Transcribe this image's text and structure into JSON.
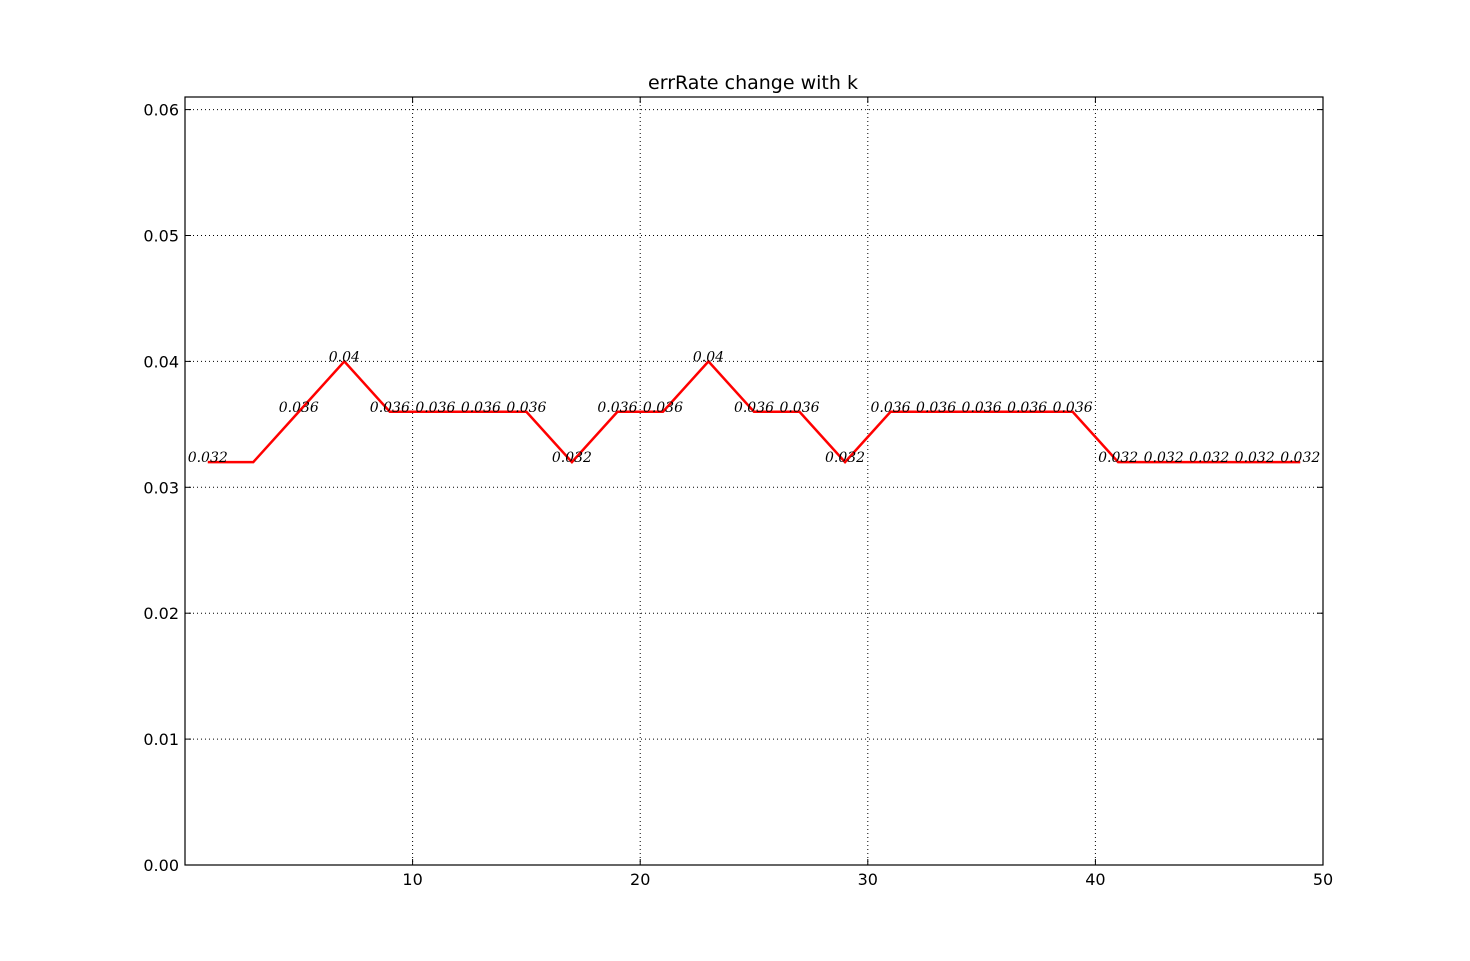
{
  "chart_data": {
    "type": "line",
    "title": "errRate change with k",
    "xlabel": "",
    "ylabel": "",
    "xlim": [
      0,
      50
    ],
    "ylim": [
      0,
      0.061
    ],
    "x_ticks": [
      10,
      20,
      30,
      40,
      50
    ],
    "x_tick_labels": [
      "10",
      "20",
      "30",
      "40",
      "50"
    ],
    "y_ticks": [
      0,
      0.01,
      0.02,
      0.03,
      0.04,
      0.05,
      0.06
    ],
    "y_tick_labels": [
      "0.00",
      "0.01",
      "0.02",
      "0.03",
      "0.04",
      "0.05",
      "0.06"
    ],
    "grid": true,
    "line_color": "#ff0000",
    "x": [
      1,
      3,
      5,
      7,
      9,
      11,
      13,
      15,
      17,
      19,
      21,
      23,
      25,
      27,
      29,
      31,
      33,
      35,
      37,
      39,
      41,
      43,
      45,
      47,
      49
    ],
    "values": [
      0.032,
      0.032,
      0.036,
      0.04,
      0.036,
      0.036,
      0.036,
      0.036,
      0.032,
      0.036,
      0.036,
      0.04,
      0.036,
      0.036,
      0.032,
      0.036,
      0.036,
      0.036,
      0.036,
      0.036,
      0.032,
      0.032,
      0.032,
      0.032,
      0.032
    ],
    "point_labels": [
      "0.032",
      "",
      "0.036",
      "0.04",
      "0.036",
      "0.036",
      "0.036",
      "0.036",
      "0.032",
      "0.036",
      "0.036",
      "0.04",
      "0.036",
      "0.036",
      "0.032",
      "0.036",
      "0.036",
      "0.036",
      "0.036",
      "0.036",
      "0.032",
      "0.032",
      "0.032",
      "0.032",
      "0.032"
    ]
  }
}
